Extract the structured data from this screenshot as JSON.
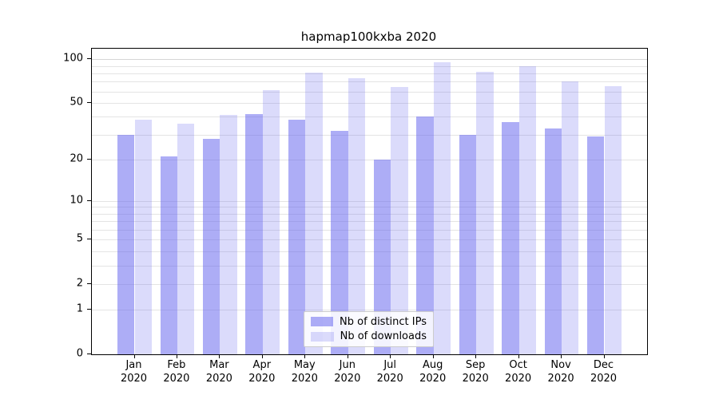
{
  "title": "hapmap100kxba 2020",
  "chart_data": {
    "type": "bar",
    "title": "hapmap100kxba 2020",
    "categories": [
      "Jan 2020",
      "Feb 2020",
      "Mar 2020",
      "Apr 2020",
      "May 2020",
      "Jun 2020",
      "Jul 2020",
      "Aug 2020",
      "Sep 2020",
      "Oct 2020",
      "Nov 2020",
      "Dec 2020"
    ],
    "month_labels": [
      {
        "month": "Jan",
        "year": "2020"
      },
      {
        "month": "Feb",
        "year": "2020"
      },
      {
        "month": "Mar",
        "year": "2020"
      },
      {
        "month": "Apr",
        "year": "2020"
      },
      {
        "month": "May",
        "year": "2020"
      },
      {
        "month": "Jun",
        "year": "2020"
      },
      {
        "month": "Jul",
        "year": "2020"
      },
      {
        "month": "Aug",
        "year": "2020"
      },
      {
        "month": "Sep",
        "year": "2020"
      },
      {
        "month": "Oct",
        "year": "2020"
      },
      {
        "month": "Nov",
        "year": "2020"
      },
      {
        "month": "Dec",
        "year": "2020"
      }
    ],
    "series": [
      {
        "name": "Nb of distinct IPs",
        "color": "#5c5ced",
        "alpha": 0.5,
        "values": [
          30,
          21,
          28,
          42,
          38,
          32,
          20,
          40,
          30,
          37,
          33,
          29
        ]
      },
      {
        "name": "Nb of downloads",
        "color": "#5c5ced",
        "alpha": 0.22,
        "values": [
          38,
          36,
          41,
          61,
          81,
          74,
          64,
          95,
          82,
          90,
          70,
          65
        ]
      }
    ],
    "yscale": "log1p",
    "ytick_values": [
      0,
      1,
      2,
      5,
      10,
      20,
      50,
      100
    ],
    "ytick_labels": [
      "0",
      "1",
      "2",
      "5",
      "10",
      "20",
      "50",
      "100"
    ],
    "minor_grid_values": [
      1,
      2,
      3,
      4,
      5,
      6,
      7,
      8,
      9,
      10,
      20,
      30,
      40,
      50,
      60,
      70,
      80,
      90,
      100
    ],
    "ylim": [
      0,
      118
    ],
    "grid": true,
    "legend_position": "lower center",
    "xlabel": "",
    "ylabel": ""
  },
  "colors": {
    "bar_base": "#5c5ced",
    "gridline": "#e4e4e4",
    "axis": "#000000",
    "legend_border": "#cccccc"
  }
}
